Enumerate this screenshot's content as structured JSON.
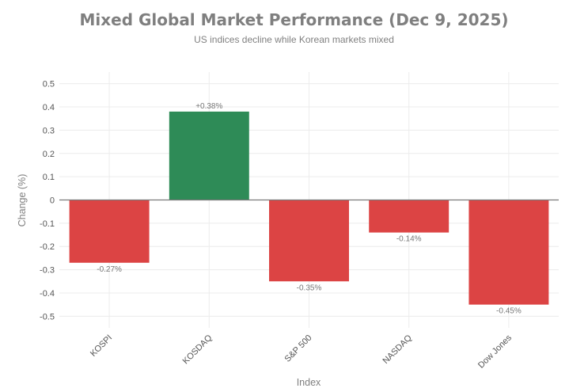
{
  "chart_data": {
    "type": "bar",
    "title": "Mixed Global Market Performance (Dec 9, 2025)",
    "subtitle": "US indices decline while Korean markets mixed",
    "xlabel": "Index",
    "ylabel": "Change (%)",
    "categories": [
      "KOSPI",
      "KOSDAQ",
      "S&P 500",
      "NASDAQ",
      "Dow Jones"
    ],
    "values": [
      -0.27,
      0.38,
      -0.35,
      -0.14,
      -0.45
    ],
    "data_labels": [
      "-0.27%",
      "+0.38%",
      "-0.35%",
      "-0.14%",
      "-0.45%"
    ],
    "ylim": [
      -0.55,
      0.55
    ],
    "yticks": [
      0.5,
      0.4,
      0.3,
      0.2,
      0.1,
      0,
      -0.1,
      -0.2,
      -0.3,
      -0.4,
      -0.5
    ],
    "ytick_labels": [
      "0.5",
      "0.4",
      "0.3",
      "0.2",
      "0.1",
      "0",
      "-0.1",
      "-0.2",
      "-0.3",
      "-0.4",
      "-0.5"
    ],
    "grid": true,
    "legend": "none",
    "colors": {
      "positive": "#2e8b57",
      "negative": "#dc4444"
    }
  }
}
